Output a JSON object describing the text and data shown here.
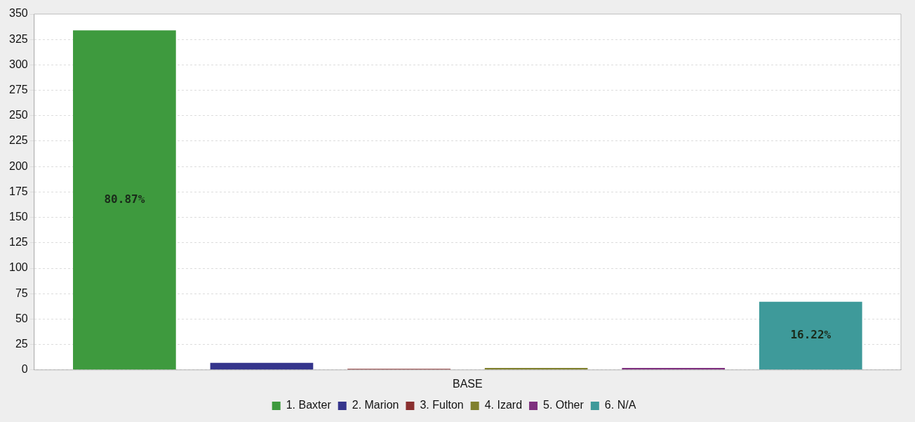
{
  "chart_data": {
    "type": "bar",
    "categories": [
      "BASE"
    ],
    "series": [
      {
        "name": "1. Baxter",
        "color": "#3e9a3e",
        "values": [
          334
        ]
      },
      {
        "name": "2. Marion",
        "color": "#35358c",
        "values": [
          7
        ]
      },
      {
        "name": "3. Fulton",
        "color": "#8a3030",
        "values": [
          1
        ]
      },
      {
        "name": "4. Izard",
        "color": "#80802e",
        "values": [
          2
        ]
      },
      {
        "name": "5. Other",
        "color": "#7e307e",
        "values": [
          2
        ]
      },
      {
        "name": "6. N/A",
        "color": "#3e9a9a",
        "values": [
          67
        ]
      }
    ],
    "annotations": [
      "80.87%",
      "16.22%"
    ],
    "ylim": [
      0,
      350
    ],
    "yticks": [
      0,
      25,
      50,
      75,
      100,
      125,
      150,
      175,
      200,
      225,
      250,
      275,
      300,
      325,
      350
    ],
    "grid": "y",
    "legend": "bottom"
  }
}
